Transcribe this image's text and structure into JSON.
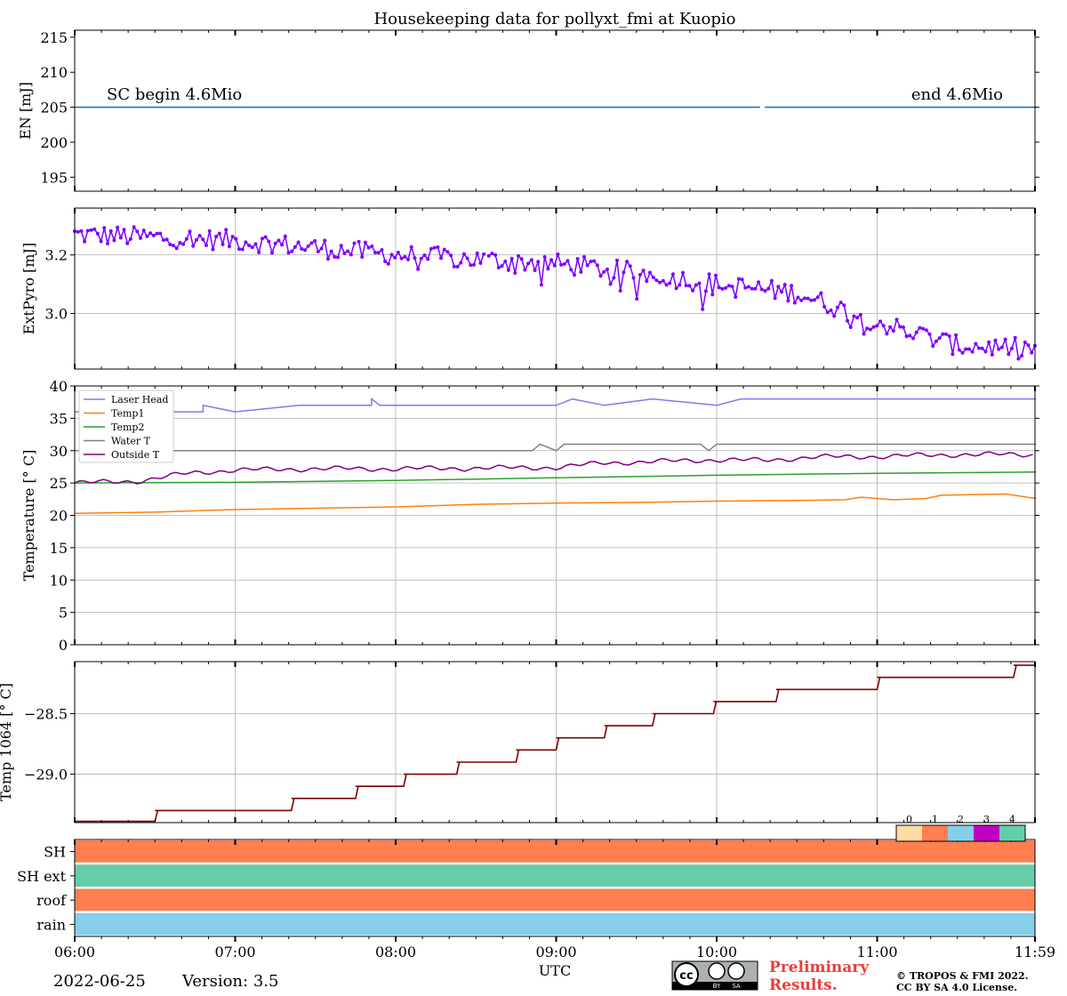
{
  "title": "Housekeeping data for pollyxt_fmi at Kuopio",
  "date": "2022-06-25",
  "version": "Version: 3.5",
  "xlabel": "UTC",
  "xticks": [
    "06:00",
    "07:00",
    "08:00",
    "09:00",
    "10:00",
    "11:00",
    "11:59"
  ],
  "preliminary": "Preliminary\nResults.",
  "copyright_line1": "© TROPOS & FMI 2022.",
  "copyright_line2": "CC BY SA 4.0 License.",
  "cc_badge_text": [
    "cc",
    "BY",
    "SA"
  ],
  "chart_data": [
    {
      "type": "line",
      "panel": "energy",
      "ylabel": "EN [mJ]",
      "ylim": [
        193,
        216
      ],
      "yticks": [
        "195",
        "200",
        "205",
        "210",
        "215"
      ],
      "annotations": [
        "SC begin 4.6Mio",
        "end 4.6Mio"
      ],
      "color": "#1f77b4",
      "series": [
        {
          "segments": [
            [
              6.0,
              10.27,
              205
            ],
            [
              10.3,
              11.99,
              205
            ]
          ]
        }
      ]
    },
    {
      "type": "line",
      "panel": "extpyro",
      "ylabel": "ExtPyro [mJ]",
      "ylim": [
        2.81,
        3.36
      ],
      "yticks": [
        "3.0",
        "3.2"
      ],
      "color": "#7f00ff",
      "trend": [
        [
          6.0,
          3.27
        ],
        [
          7.0,
          3.25
        ],
        [
          8.0,
          3.2
        ],
        [
          9.0,
          3.17
        ],
        [
          9.5,
          3.14
        ],
        [
          10.0,
          3.1
        ],
        [
          10.5,
          3.07
        ],
        [
          11.0,
          2.97
        ],
        [
          11.5,
          2.89
        ],
        [
          11.99,
          2.88
        ]
      ],
      "noise": 0.035
    },
    {
      "type": "line",
      "panel": "temperature",
      "ylabel": "Temperature [$^\\circ C$]",
      "ylim": [
        0,
        40
      ],
      "yticks": [
        "0",
        "5",
        "10",
        "15",
        "20",
        "25",
        "30",
        "35",
        "40"
      ],
      "legend_location": "top-left",
      "series": [
        {
          "name": "Laser Head",
          "color": "#7b7bf0",
          "points": [
            [
              6.0,
              36
            ],
            [
              6.8,
              36
            ],
            [
              6.8,
              37
            ],
            [
              7.0,
              36
            ],
            [
              7.4,
              37
            ],
            [
              7.85,
              37
            ],
            [
              7.85,
              38
            ],
            [
              7.9,
              37
            ],
            [
              9.0,
              37
            ],
            [
              9.1,
              38
            ],
            [
              9.3,
              37
            ],
            [
              9.6,
              38
            ],
            [
              10.0,
              37
            ],
            [
              10.15,
              38
            ],
            [
              11.99,
              38
            ]
          ]
        },
        {
          "name": "Temp1",
          "color": "#ff7f0e",
          "points": [
            [
              6.0,
              20.3
            ],
            [
              6.5,
              20.5
            ],
            [
              7.0,
              20.9
            ],
            [
              7.5,
              21.1
            ],
            [
              8.0,
              21.3
            ],
            [
              8.5,
              21.7
            ],
            [
              9.0,
              21.9
            ],
            [
              9.5,
              22.0
            ],
            [
              10.0,
              22.2
            ],
            [
              10.5,
              22.3
            ],
            [
              10.8,
              22.4
            ],
            [
              10.9,
              22.8
            ],
            [
              11.1,
              22.4
            ],
            [
              11.3,
              22.6
            ],
            [
              11.4,
              23.1
            ],
            [
              11.8,
              23.3
            ],
            [
              11.99,
              22.6
            ]
          ]
        },
        {
          "name": "Temp2",
          "color": "#2ca02c",
          "points": [
            [
              6.0,
              25.0
            ],
            [
              7.0,
              25.1
            ],
            [
              8.0,
              25.4
            ],
            [
              9.0,
              25.8
            ],
            [
              10.0,
              26.2
            ],
            [
              11.0,
              26.5
            ],
            [
              11.99,
              26.7
            ]
          ]
        },
        {
          "name": "Water T",
          "color": "#808080",
          "points": [
            [
              6.0,
              30
            ],
            [
              8.85,
              30
            ],
            [
              8.9,
              31
            ],
            [
              9.0,
              30
            ],
            [
              9.05,
              31
            ],
            [
              9.9,
              31
            ],
            [
              9.95,
              30
            ],
            [
              10.0,
              31
            ],
            [
              11.99,
              31
            ]
          ]
        },
        {
          "name": "Outside T",
          "color": "#800080",
          "points": [
            [
              6.0,
              25.0
            ],
            [
              6.4,
              25.3
            ],
            [
              6.7,
              26.5
            ],
            [
              7.0,
              27.0
            ],
            [
              7.5,
              27.2
            ],
            [
              8.0,
              27.2
            ],
            [
              8.5,
              27.3
            ],
            [
              9.0,
              27.4
            ],
            [
              9.3,
              28.1
            ],
            [
              9.6,
              28.3
            ],
            [
              10.0,
              28.6
            ],
            [
              10.3,
              28.5
            ],
            [
              10.6,
              29.0
            ],
            [
              11.0,
              29.1
            ],
            [
              11.5,
              29.4
            ],
            [
              11.99,
              29.4
            ]
          ]
        }
      ]
    },
    {
      "type": "line",
      "panel": "temp1064",
      "ylabel": "Temp 1064 [$^\\circ C$]",
      "ylim": [
        -29.4,
        -28.07
      ],
      "yticks": [
        "−29.0",
        "−28.5"
      ],
      "color": "#800000",
      "steps": [
        [
          6.0,
          -29.39
        ],
        [
          6.5,
          -29.3
        ],
        [
          7.35,
          -29.2
        ],
        [
          7.75,
          -29.1
        ],
        [
          8.05,
          -29.0
        ],
        [
          8.38,
          -28.9
        ],
        [
          8.75,
          -28.8
        ],
        [
          9.0,
          -28.7
        ],
        [
          9.3,
          -28.6
        ],
        [
          9.6,
          -28.5
        ],
        [
          9.98,
          -28.4
        ],
        [
          10.37,
          -28.3
        ],
        [
          11.0,
          -28.2
        ],
        [
          11.85,
          -28.1
        ]
      ]
    },
    {
      "type": "heatmap",
      "panel": "status",
      "rows": [
        "SH",
        "SH ext",
        "roof",
        "rain"
      ],
      "row_values": [
        1,
        4,
        1,
        2
      ],
      "colorbar_labels": [
        "0",
        "1",
        "2",
        "3",
        "4"
      ],
      "colorbar_colors": [
        "#ffdaa3",
        "#ff7f50",
        "#87ceeb",
        "#c000c0",
        "#66cdaa"
      ]
    }
  ]
}
